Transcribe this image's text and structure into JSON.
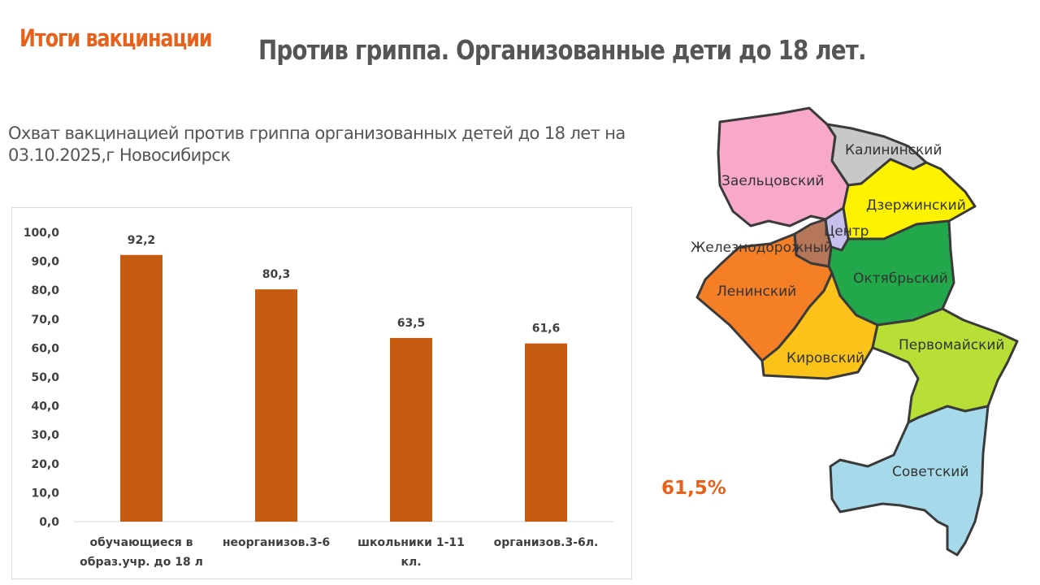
{
  "header": {
    "tag": "Итоги вакцинации",
    "title": "Против гриппа. Организованные дети до 18 лет."
  },
  "subtitle": "Охват вакцинацией против гриппа организованных детей до 18 лет на 03.10.2025,г Новосибирск",
  "chart_data": {
    "type": "bar",
    "categories": [
      [
        "обучающиеся в",
        "образ.учр. до 18 л"
      ],
      [
        "неорганизов.3-6"
      ],
      [
        "школьники 1-11",
        "кл."
      ],
      [
        "организов.3-6л."
      ]
    ],
    "values": [
      92.2,
      80.3,
      63.5,
      61.6
    ],
    "value_labels": [
      "92,2",
      "80,3",
      "63,5",
      "61,6"
    ],
    "ylim": [
      0,
      100
    ],
    "y_ticks": [
      "0,0",
      "10,0",
      "20,0",
      "30,0",
      "40,0",
      "50,0",
      "60,0",
      "70,0",
      "80,0",
      "90,0",
      "100,0"
    ],
    "bar_color": "#c55a11",
    "grid": false
  },
  "coverage_total": "61,5%",
  "map": {
    "districts": [
      {
        "name": "Заельцовский",
        "color": "#f8a8c8"
      },
      {
        "name": "Калининский",
        "color": "#c8c8c8"
      },
      {
        "name": "Дзержинский",
        "color": "#fff200"
      },
      {
        "name": "Центр",
        "color": "#c8c0ec"
      },
      {
        "name": "Железнодорожный",
        "color": "#b5765a"
      },
      {
        "name": "Октябрьский",
        "color": "#22a84a"
      },
      {
        "name": "Ленинский",
        "color": "#f47f27"
      },
      {
        "name": "Кировский",
        "color": "#fbc21a"
      },
      {
        "name": "Первомайский",
        "color": "#b7df36"
      },
      {
        "name": "Советский",
        "color": "#a6daeb"
      }
    ]
  }
}
